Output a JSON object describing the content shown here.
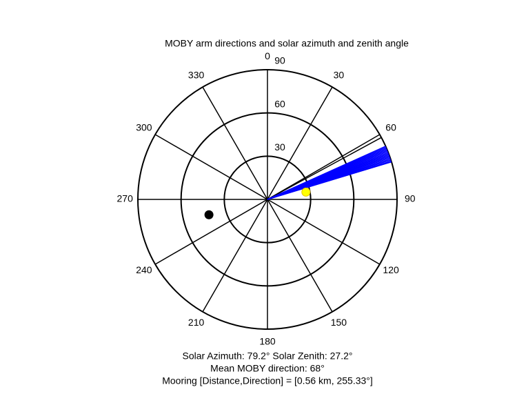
{
  "chart_data": {
    "type": "polar",
    "title": "MOBY arm directions and solar azimuth and zenith angle",
    "theta_ticks": [
      0,
      30,
      60,
      90,
      120,
      150,
      180,
      210,
      240,
      270,
      300,
      330
    ],
    "rlim": [
      0,
      90
    ],
    "rticks": [
      30,
      60,
      90
    ],
    "series": [
      {
        "color": "#000000",
        "theta": [
          61.5
        ],
        "values": [
          90
        ]
      },
      {
        "color": "#0000ff",
        "theta": [
          65.8,
          66.3,
          66.8,
          67.3,
          67.8,
          68.3,
          68.8,
          69.3,
          69.8,
          70.3,
          70.8,
          71.3,
          71.8,
          72.3,
          72.8,
          73.2
        ],
        "values": [
          90,
          90,
          90,
          90,
          90,
          90,
          90,
          90,
          90,
          90,
          90,
          90,
          90,
          90,
          90,
          90
        ]
      }
    ],
    "markers": [
      {
        "color": "#ffff00",
        "theta": 79.2,
        "r": 27.2
      },
      {
        "color": "#000000",
        "theta": 255.33,
        "r": 42
      }
    ],
    "annotations": [
      "Solar Azimuth: 79.2°   Solar Zenith: 27.2°",
      "Mean MOBY direction: 68°",
      "Mooring [Distance,Direction] = [0.56 km, 255.33°]"
    ]
  }
}
